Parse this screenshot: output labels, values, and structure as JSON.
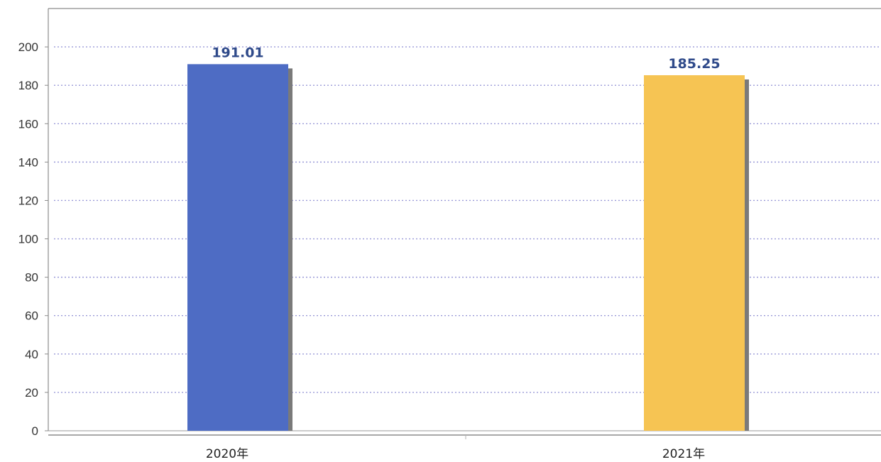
{
  "chart_data": {
    "type": "bar",
    "categories": [
      "2020年",
      "2021年"
    ],
    "values": [
      191.01,
      185.25
    ],
    "value_labels": [
      "191.01",
      "185.25"
    ],
    "colors": [
      "#4e6cc4",
      "#f6c453"
    ],
    "shadow_color": "#7a7a7a",
    "gridline_color": "#9a9ad8",
    "ylim": [
      0,
      220
    ],
    "yticks": [
      0,
      20,
      40,
      60,
      80,
      100,
      120,
      140,
      160,
      180,
      200
    ],
    "grid": true,
    "gridline_style": "dotted",
    "title": "",
    "xlabel": "",
    "ylabel": ""
  }
}
